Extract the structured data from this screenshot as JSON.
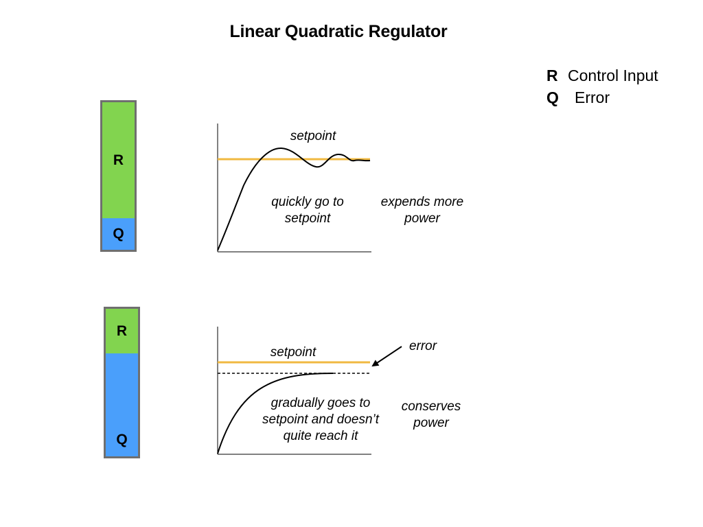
{
  "title": "Linear Quadratic Regulator",
  "legend": {
    "items": [
      {
        "key": "R",
        "label": "Control Input"
      },
      {
        "key": "Q",
        "label": "Error"
      }
    ]
  },
  "colors": {
    "r_segment": "#82d44f",
    "q_segment": "#4a9ffb",
    "bar_border": "#6f6f6f",
    "setpoint_line": "#f0b941",
    "curve": "#000000"
  },
  "panel_top": {
    "bar": {
      "r_label": "R",
      "q_label": "Q",
      "r_fraction": 0.77,
      "q_fraction": 0.23
    },
    "setpoint_label": "setpoint",
    "curve_label": "quickly go to\nsetpoint",
    "side_label": "expends more\npower"
  },
  "panel_bottom": {
    "bar": {
      "r_label": "R",
      "q_label": "Q",
      "r_fraction": 0.3,
      "q_fraction": 0.7
    },
    "setpoint_label": "setpoint",
    "error_label": "error",
    "curve_label": "gradually goes to\nsetpoint and doesn’t\nquite reach it",
    "side_label": "conserves\npower"
  }
}
